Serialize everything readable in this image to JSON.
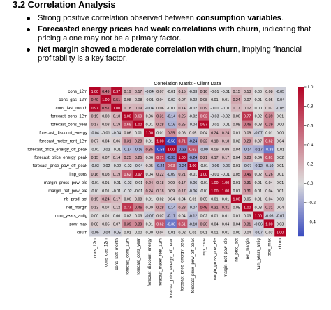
{
  "section": {
    "heading": "3.2 Correlation Analysis",
    "bullets": [
      {
        "pre": "Strong positive correlation observed between ",
        "bold": "consumption variables",
        "post": "."
      },
      {
        "pre": "",
        "bold": "Forecasted energy prices had weak correlations with churn",
        "post": ", indicating that pricing alone may not be a primary factor."
      },
      {
        "pre": "",
        "bold": "Net margin showed a moderate correlation with churn",
        "post": ", implying financial profitability is a key factor."
      }
    ]
  },
  "colors": {
    "neg": "#3b4cc0",
    "mid": "#dddcdc",
    "pos": "#b40426"
  },
  "chart_data": {
    "type": "heatmap",
    "title": "Correlation Matrix - Client Data",
    "labels": [
      "cons_12m",
      "cons_gas_12m",
      "cons_last_month",
      "forecast_cons_12m",
      "forecast_cons_year",
      "forecast_discount_energy",
      "forecast_meter_rent_12m",
      "forecast_price_energy_off_peak",
      "forecast_price_energy_peak",
      "forecast_price_pow_off_peak",
      "imp_cons",
      "margin_gross_pow_ele",
      "margin_net_pow_ele",
      "nb_prod_act",
      "net_margin",
      "num_years_antig",
      "pow_max",
      "churn"
    ],
    "colorbar_ticks": [
      1.0,
      0.8,
      0.6,
      0.4,
      0.2,
      0.0,
      -0.2,
      -0.4
    ],
    "vmin": -0.55,
    "vmax": 1.0,
    "values": [
      [
        1.0,
        0.49,
        0.97,
        0.19,
        0.17,
        -0.04,
        0.07,
        -0.01,
        0.15,
        -0.03,
        0.16,
        -0.01,
        -0.01,
        0.15,
        0.13,
        -0.0,
        0.08,
        -0.05
      ],
      [
        0.49,
        1.0,
        0.51,
        0.08,
        0.08,
        -0.01,
        0.04,
        -0.02,
        0.07,
        -0.02,
        0.08,
        0.01,
        0.01,
        0.24,
        0.07,
        0.01,
        0.05,
        -0.04
      ],
      [
        0.97,
        0.51,
        1.0,
        0.18,
        0.19,
        -0.04,
        0.06,
        -0.01,
        0.14,
        -0.02,
        0.19,
        -0.01,
        -0.01,
        0.17,
        0.12,
        0.0,
        0.07,
        -0.05
      ],
      [
        0.19,
        0.08,
        0.18,
        1.0,
        0.69,
        0.06,
        0.31,
        -0.14,
        0.25,
        -0.02,
        0.62,
        -0.03,
        -0.02,
        0.06,
        0.77,
        0.02,
        0.39,
        0.01
      ],
      [
        0.17,
        0.08,
        0.19,
        0.69,
        1.0,
        0.01,
        0.28,
        -0.16,
        0.25,
        -0.04,
        0.97,
        -0.01,
        -0.01,
        0.08,
        0.46,
        0.03,
        0.39,
        -0.0
      ],
      [
        -0.04,
        -0.01,
        -0.04,
        0.06,
        0.01,
        1.0,
        0.01,
        0.35,
        0.06,
        0.05,
        0.04,
        0.24,
        0.24,
        0.01,
        0.09,
        -0.07,
        0.01,
        -0.0
      ],
      [
        0.07,
        0.04,
        0.06,
        0.31,
        0.28,
        0.01,
        1.0,
        -0.58,
        0.71,
        -0.24,
        0.22,
        0.18,
        0.18,
        0.02,
        0.28,
        0.07,
        0.62,
        0.04
      ],
      [
        -0.01,
        -0.02,
        -0.01,
        -0.14,
        -0.16,
        0.35,
        -0.58,
        1.0,
        -0.33,
        0.63,
        -0.09,
        0.09,
        0.09,
        0.04,
        -0.14,
        -0.17,
        -0.38,
        -0.01
      ],
      [
        0.15,
        0.07,
        0.14,
        0.25,
        0.25,
        0.06,
        0.71,
        -0.33,
        1.0,
        -0.24,
        0.21,
        0.17,
        0.17,
        0.04,
        0.23,
        0.04,
        0.61,
        0.02
      ],
      [
        -0.03,
        -0.02,
        -0.02,
        -0.02,
        -0.04,
        0.05,
        -0.24,
        0.63,
        -0.24,
        1.0,
        -0.01,
        -0.06,
        -0.06,
        0.01,
        -0.07,
        -0.12,
        -0.1,
        0.01
      ],
      [
        0.16,
        0.08,
        0.19,
        0.62,
        0.97,
        0.04,
        0.22,
        -0.09,
        0.21,
        -0.01,
        1.0,
        -0.01,
        -0.01,
        0.05,
        0.46,
        0.02,
        0.26,
        0.01
      ],
      [
        -0.01,
        0.01,
        -0.01,
        -0.03,
        -0.01,
        0.24,
        0.18,
        0.09,
        0.17,
        -0.06,
        -0.01,
        1.0,
        1.0,
        0.01,
        0.31,
        0.01,
        0.04,
        0.01
      ],
      [
        -0.01,
        0.01,
        -0.01,
        -0.02,
        -0.01,
        0.24,
        0.18,
        0.09,
        0.17,
        -0.06,
        -0.01,
        1.0,
        1.0,
        0.01,
        0.31,
        0.01,
        0.04,
        0.01
      ],
      [
        0.15,
        0.24,
        0.17,
        0.06,
        0.08,
        0.01,
        0.02,
        0.04,
        0.04,
        0.01,
        0.05,
        0.01,
        0.01,
        1.0,
        0.05,
        0.01,
        0.04,
        0.0
      ],
      [
        0.13,
        0.07,
        0.12,
        0.77,
        0.46,
        0.09,
        0.28,
        -0.14,
        0.23,
        -0.07,
        0.46,
        0.31,
        0.31,
        0.05,
        1.0,
        0.03,
        0.31,
        0.04
      ],
      [
        -0.0,
        0.01,
        0.0,
        0.02,
        0.03,
        -0.07,
        0.07,
        -0.17,
        0.04,
        -0.12,
        0.02,
        0.01,
        0.01,
        0.01,
        0.03,
        1.0,
        -0.06,
        -0.07
      ],
      [
        0.08,
        0.05,
        0.07,
        0.39,
        0.39,
        0.01,
        0.62,
        -0.38,
        0.61,
        -0.1,
        0.26,
        0.04,
        0.04,
        0.04,
        0.31,
        -0.06,
        1.0,
        0.03
      ],
      [
        -0.05,
        -0.04,
        -0.05,
        0.01,
        -0.0,
        -0.0,
        0.04,
        -0.01,
        0.02,
        0.01,
        0.01,
        0.01,
        0.01,
        0.0,
        0.04,
        -0.07,
        0.03,
        1.0
      ]
    ]
  }
}
